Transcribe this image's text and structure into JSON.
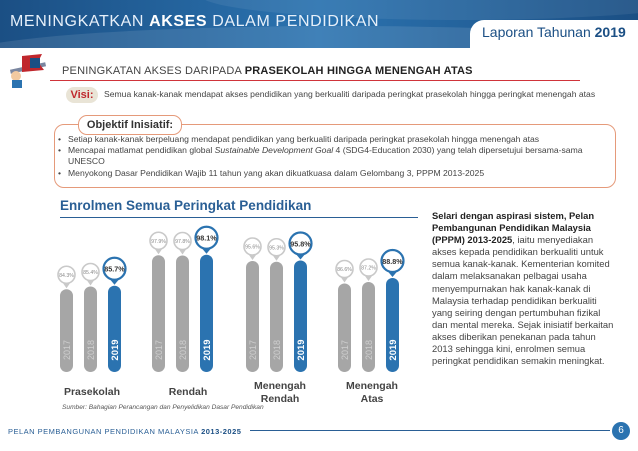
{
  "header": {
    "title_pre": "MENINGKATKAN ",
    "title_bold": "AKSES",
    "title_post": " DALAM PENDIDIKAN",
    "report_label": "Laporan Tahunan ",
    "report_year": "2019"
  },
  "section": {
    "title_pre": "PENINGKATAN AKSES DARIPADA ",
    "title_bold": "PRASEKOLAH HINGGA MENENGAH ATAS"
  },
  "visi": {
    "label": "Visi:",
    "text": "Semua kanak-kanak mendapat akses pendidikan yang berkualiti daripada peringkat prasekolah hingga peringkat menengah atas"
  },
  "objektif": {
    "label": "Objektif Inisiatif:",
    "bullets": [
      "Setiap kanak-kanak berpeluang mendapat pendidikan yang berkualiti daripada peringkat prasekolah hingga menengah atas",
      "Mencapai matlamat pendidikan global ",
      "Sustainable Development Goal",
      " 4 (SDG4-Education 2030) yang telah dipersetujui bersama-sama UNESCO",
      "Menyokong Dasar Pendidikan Wajib 11 tahun yang akan dikuatkuasa dalam Gelombang 3, PPPM 2013-2025"
    ]
  },
  "chart_title": "Enrolmen Semua Peringkat Pendidikan",
  "chart_data": {
    "type": "bar",
    "categories": [
      "Prasekolah",
      "Rendah",
      "Menengah Rendah",
      "Menengah Atas"
    ],
    "category_labels": [
      [
        "Prasekolah"
      ],
      [
        "Rendah"
      ],
      [
        "Menengah",
        "Rendah"
      ],
      [
        "Menengah",
        "Atas"
      ]
    ],
    "years": [
      "2017",
      "2018",
      "2019"
    ],
    "values": [
      [
        84.3,
        85.4,
        85.7
      ],
      [
        97.9,
        97.8,
        98.1
      ],
      [
        95.6,
        95.3,
        95.8
      ],
      [
        86.6,
        87.2,
        88.8
      ]
    ],
    "value_labels": [
      [
        "84.3%",
        "85.4%",
        "85.7%"
      ],
      [
        "97.9%",
        "97.8%",
        "98.1%"
      ],
      [
        "95.6%",
        "95.3%",
        "95.8%"
      ],
      [
        "86.6%",
        "87.2%",
        "88.8%"
      ]
    ],
    "colors": {
      "past": "#a6a6a6",
      "current": "#2b73b0",
      "text_past": "#cfcfcf",
      "text_current": "#ffffff"
    }
  },
  "source": "Sumber: Bahagian Perancangan dan Penyelidikan Dasar Pendidikan",
  "side_text": {
    "bold": "Selari dengan aspirasi sistem, Pelan Pembangunan Pendidikan Malaysia (PPPM) 2013-2025",
    "body": ", iaitu menyediakan akses kepada pendidikan berkualiti untuk semua kanak-kanak. Kementerian komited dalam melaksanakan pelbagai usaha menyempurnakan hak kanak-kanak di Malaysia terhadap pendidikan berkualiti yang seiring dengan pertumbuhan fizikal dan mental mereka. Sejak inisiatif berkaitan akses diberikan penekanan pada tahun 2013 sehingga kini, enrolmen semua peringkat pendidikan semakin meningkat."
  },
  "footer": {
    "text_pre": "PELAN PEMBANGUNAN PENDIDIKAN MALAYSIA ",
    "text_bold": "2013-2025",
    "page": "6"
  },
  "icons": {
    "flag": "flag-icon"
  },
  "accent_colors": {
    "header": "#2b73b0",
    "red": "#d0343a",
    "title_blue": "#2a5f95"
  }
}
